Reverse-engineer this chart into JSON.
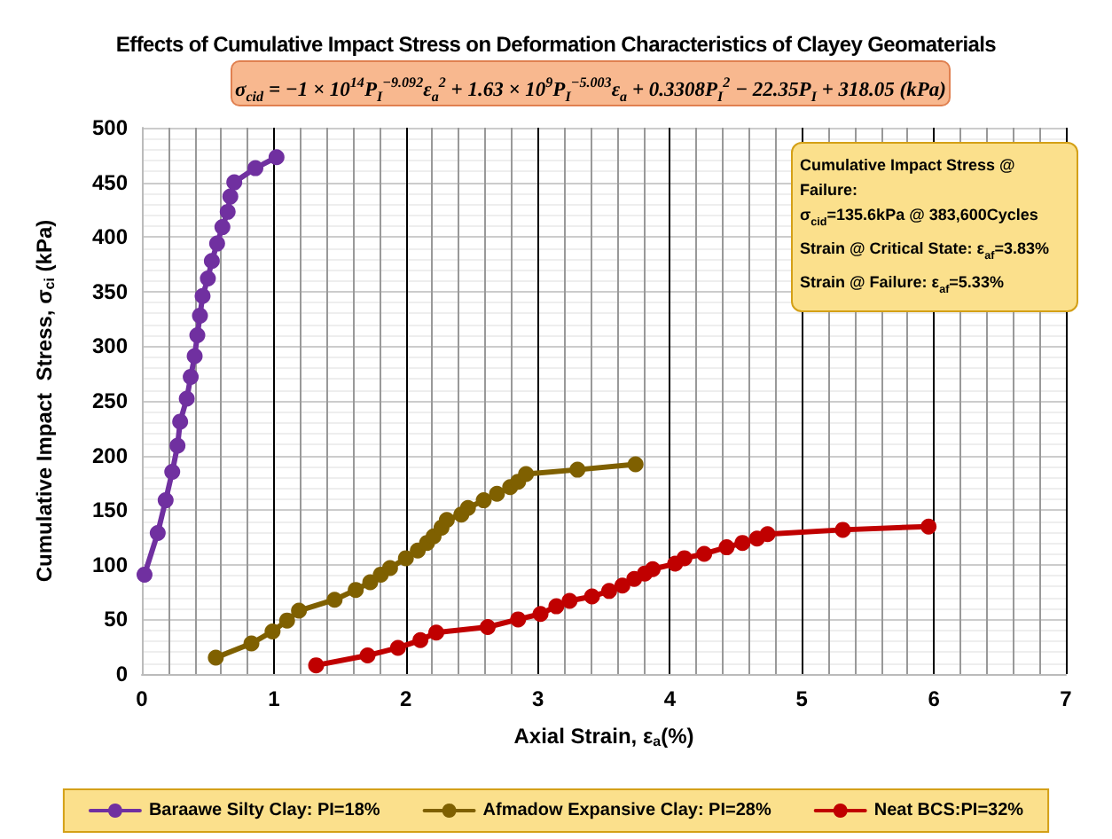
{
  "chart_data": {
    "type": "line",
    "title": "Effects of Cumulative Impact Stress on Deformation Characteristics of Clayey Geomaterials",
    "annotations": [
      "σ$_{cid}$ = −1 × 10$^{14}$P$_{I}$$^{−9.092}$ε$_{a}$$^{2}$ + 1.63 × 10$^{9}$P$_{I}$$^{−5.003}$ε$_{a}$ + 0.3308P$_{I}$$^{2}$ − 22.35P$_{I}$ + 318.05 (kPa)",
      "Cumulative Impact Stress @ Failure:",
      "σ$_{cid}$=135.6kPa @ 383,600Cycles",
      "Strain @ Critical State: ε$_{af}$=3.83%",
      "Strain @ Failure: ε$_{af}$=5.33%"
    ],
    "xlabel": "Axial Strain, ε$_{a}$(%)",
    "ylabel": "Cumulative Impact  Stress, σ$_{ci}$ (kPa)",
    "xlim": [
      0,
      7
    ],
    "xticks": [
      0,
      1,
      2,
      3,
      4,
      5,
      6,
      7
    ],
    "ylim": [
      0,
      500
    ],
    "yticks": [
      0,
      50,
      100,
      150,
      200,
      250,
      300,
      350,
      400,
      450,
      500
    ],
    "grid": true,
    "legend": "bottom",
    "marker": "circle",
    "line_style": "solid",
    "series": [
      {
        "name": "Baraawe Silty Clay: PI=18%",
        "color": "#7030a0",
        "x": [
          0.02,
          0.12,
          0.18,
          0.23,
          0.27,
          0.29,
          0.34,
          0.37,
          0.4,
          0.42,
          0.44,
          0.46,
          0.5,
          0.53,
          0.57,
          0.61,
          0.65,
          0.67,
          0.7,
          0.86,
          1.02
        ],
        "values": [
          91,
          129,
          159,
          185,
          209,
          231,
          252,
          272,
          291,
          310,
          328,
          346,
          362,
          378,
          394,
          409,
          423,
          437,
          450,
          463,
          473
        ]
      },
      {
        "name": "Afmadow Expansive Clay: PI=28%",
        "color": "#7f6000",
        "x": [
          0.56,
          0.83,
          0.99,
          1.1,
          1.19,
          1.46,
          1.62,
          1.73,
          1.81,
          1.88,
          2.0,
          2.09,
          2.16,
          2.21,
          2.27,
          2.31,
          2.42,
          2.47,
          2.59,
          2.69,
          2.79,
          2.85,
          2.91,
          3.3,
          3.74
        ],
        "values": [
          15,
          28,
          39,
          49,
          58,
          68,
          77,
          84,
          91,
          97,
          106,
          113,
          120,
          126,
          134,
          141,
          146,
          152,
          159,
          165,
          171,
          176,
          183,
          187,
          192
        ]
      },
      {
        "name": "Neat BCS:PI=32%",
        "color": "#c00000",
        "x": [
          1.32,
          1.71,
          1.94,
          2.11,
          2.23,
          2.62,
          2.85,
          3.02,
          3.14,
          3.24,
          3.41,
          3.54,
          3.64,
          3.73,
          3.81,
          3.87,
          4.04,
          4.11,
          4.26,
          4.43,
          4.55,
          4.66,
          4.74,
          5.31,
          5.96
        ],
        "values": [
          8,
          17,
          24,
          31,
          38,
          43,
          50,
          55,
          62,
          67,
          71,
          76,
          81,
          87,
          92,
          96,
          101,
          106,
          110,
          116,
          120,
          124,
          128,
          132,
          135
        ]
      }
    ]
  }
}
